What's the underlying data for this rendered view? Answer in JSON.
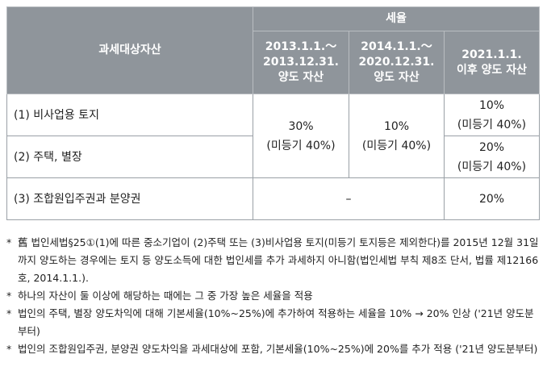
{
  "table": {
    "header": {
      "asset_col": "과세대상자산",
      "rate_group": "세율",
      "periods": [
        [
          "2013.1.1.～",
          "2013.12.31.",
          "양도 자산"
        ],
        [
          "2014.1.1.～",
          "2020.12.31.",
          "양도 자산"
        ],
        [
          "2021.1.1.",
          "이후 양도 자산"
        ]
      ]
    },
    "rows": [
      {
        "label": "(1) 비사업용 토지",
        "p3": [
          "10%",
          "(미등기 40%)"
        ]
      },
      {
        "label": "(2) 주택, 별장",
        "p3": [
          "20%",
          "(미등기 40%)"
        ]
      },
      {
        "label": "(3) 조합원입주권과 분양권",
        "p3": [
          "20%"
        ]
      }
    ],
    "merged_p1": [
      "30%",
      "(미등기 40%)"
    ],
    "merged_p2": [
      "10%",
      "(미등기 40%)"
    ],
    "row3_p12": "–"
  },
  "notes": [
    {
      "mark": "*",
      "text": "舊 법인세법§25①(1)에 따른 중소기업이 (2)주택 또는 (3)비사업용 토지(미등기 토지등은 제외한다)를 2015년 12월 31일까지 양도하는 경우에는 토지 등 양도소득에 대한 법인세를 추가 과세하지 아니함(법인세법 부칙 제8조 단서, 법률 제12166호, 2014.1.1.)."
    },
    {
      "mark": "*",
      "text": "하나의 자산이 둘 이상에 해당하는 때에는 그 중 가장 높은 세율을 적용"
    },
    {
      "mark": "*",
      "text": "법인의 주택, 별장 양도차익에 대해 기본세율(10%~25%)에 추가하여 적용하는 세율을 10% → 20% 인상 ('21년 양도분부터)"
    },
    {
      "mark": "*",
      "text": "법인의 조합원입주권, 분양권 양도차익을 과세대상에 포함, 기본세율(10%~25%)에 20%를 추가 적용 ('21년 양도분부터)"
    }
  ]
}
